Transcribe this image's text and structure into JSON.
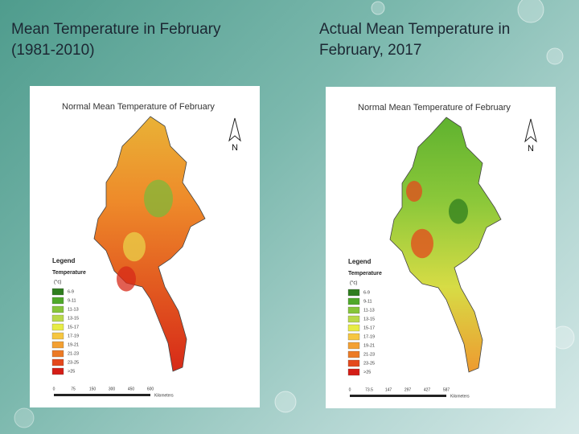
{
  "slide": {
    "titles": [
      {
        "lines": [
          "Mean Temperature in February",
          "(1981-2010)"
        ]
      },
      {
        "lines": [
          "Actual Mean Temperature in",
          "February, 2017"
        ]
      }
    ],
    "maps": [
      {
        "title": "Normal Mean Temperature of February",
        "north": "N",
        "legend_title": "Legend",
        "legend_subtitle": "Temperature",
        "legend_unit": "(°c)",
        "legend_classes": [
          "6-9",
          "9-11",
          "11-13",
          "13-15",
          "15-17",
          "17-19",
          "19-21",
          "21-23",
          "23-25",
          ">25"
        ],
        "legend_colors": [
          "#2e7d1e",
          "#4fa82a",
          "#86c53a",
          "#b9d94a",
          "#e7ec45",
          "#f6c640",
          "#f3a032",
          "#ec7a25",
          "#e4481c",
          "#d41d16"
        ],
        "scale_labels": [
          "0",
          "75",
          "150",
          "300",
          "450",
          "600"
        ],
        "scale_unit": "Kilometers",
        "fill_stops": [
          "#e9b236",
          "#ee8a2a",
          "#e25a20",
          "#d72a18"
        ]
      },
      {
        "title": "Normal Mean Temperature of February",
        "north": "N",
        "legend_title": "Legend",
        "legend_subtitle": "Temperature",
        "legend_unit": "(°c)",
        "legend_classes": [
          "6-9",
          "9-11",
          "11-13",
          "13-15",
          "15-17",
          "17-19",
          "19-21",
          "21-23",
          "23-25",
          ">25"
        ],
        "legend_colors": [
          "#2e7d1e",
          "#4fa82a",
          "#86c53a",
          "#b9d94a",
          "#e7ec45",
          "#f6c640",
          "#f3a032",
          "#ec7a25",
          "#e4481c",
          "#d41d16"
        ],
        "scale_labels": [
          "0",
          "73.5",
          "147",
          "297",
          "427",
          "587"
        ],
        "scale_unit": "Kilometers",
        "fill_stops": [
          "#5fb22f",
          "#8cc83a",
          "#d7dc45",
          "#ee9a30"
        ]
      }
    ]
  }
}
